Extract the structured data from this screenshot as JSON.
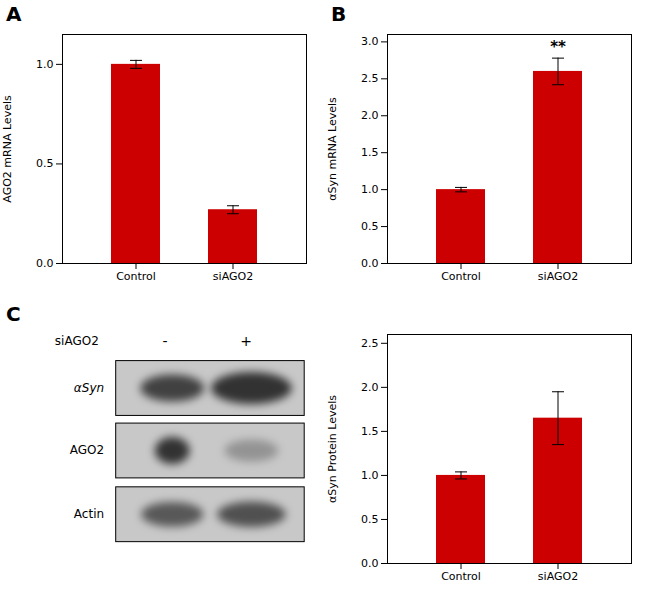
{
  "chart_data": [
    {
      "type": "bar",
      "title": "A",
      "categories": [
        "Control",
        "siAGO2"
      ],
      "values": [
        1.0,
        0.27
      ],
      "errors": [
        0.02,
        0.02
      ],
      "ylabel": "AGO2 mRNA Levels",
      "ylim": [
        0,
        1.15
      ],
      "yticks": [
        {
          "value": 0,
          "label": "0.0"
        },
        0.5,
        {
          "value": 1.0,
          "label": "1.0"
        }
      ],
      "color": "#cc0000",
      "grid": false
    },
    {
      "type": "bar",
      "title": "B",
      "categories": [
        "Control",
        "siAGO2"
      ],
      "values": [
        1.0,
        2.6
      ],
      "errors": [
        0.03,
        0.18
      ],
      "ylabel": "αSyn mRNA Levels",
      "ylim": [
        0,
        3.1
      ],
      "yticks": [
        {
          "value": 0,
          "label": "0.0"
        },
        0.5,
        {
          "value": 1.0,
          "label": "1.0"
        },
        1.5,
        {
          "value": 2.0,
          "label": "2.0"
        },
        2.5,
        {
          "value": 3.0,
          "label": "3.0"
        }
      ],
      "color": "#cc0000",
      "grid": false,
      "annotations": [
        {
          "text": "**",
          "category": "siAGO2"
        }
      ]
    },
    {
      "type": "western_blot",
      "title": "C",
      "categories": [
        "αSyn",
        "AGO2",
        "Actin"
      ],
      "annotations": [
        {
          "text": "siAGO2"
        },
        {
          "text": "-"
        },
        {
          "text": "+"
        }
      ]
    },
    {
      "type": "bar",
      "categories": [
        "Control",
        "siAGO2"
      ],
      "values": [
        1.0,
        1.65
      ],
      "errors": [
        0.04,
        0.3
      ],
      "ylabel": "αSyn Protein Levels",
      "ylim": [
        0,
        2.6
      ],
      "yticks": [
        {
          "value": 0,
          "label": "0.0"
        },
        0.5,
        {
          "value": 1.0,
          "label": "1.0"
        },
        1.5,
        {
          "value": 2.0,
          "label": "2.0"
        },
        2.5
      ],
      "color": "#cc0000",
      "grid": false
    }
  ]
}
